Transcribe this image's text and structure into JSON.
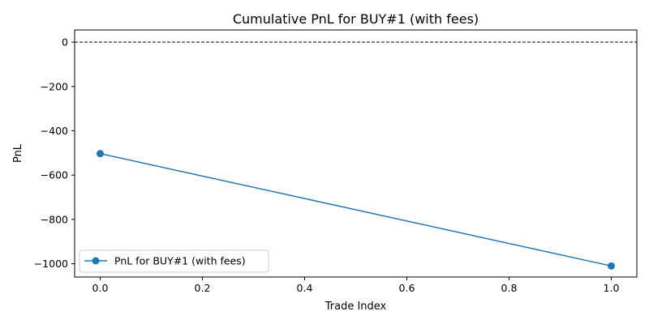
{
  "chart_data": {
    "type": "line",
    "title": "Cumulative PnL for BUY#1 (with fees)",
    "xlabel": "Trade Index",
    "ylabel": "PnL",
    "xlim": [
      -0.05,
      1.05
    ],
    "ylim": [
      -1060,
      55
    ],
    "x_ticks": [
      0.0,
      0.2,
      0.4,
      0.6,
      0.8,
      1.0
    ],
    "x_tick_labels": [
      "0.0",
      "0.2",
      "0.4",
      "0.6",
      "0.8",
      "1.0"
    ],
    "y_ticks": [
      0,
      -200,
      -400,
      -600,
      -800,
      -1000
    ],
    "y_tick_labels": [
      "0",
      "−200",
      "−400",
      "−600",
      "−800",
      "−1000"
    ],
    "grid": false,
    "legend_position": "lower-left",
    "reference_line": {
      "y": 0,
      "style": "dashed",
      "color": "#000000"
    },
    "series": [
      {
        "name": "PnL for BUY#1 (with fees)",
        "color": "#1f77b4",
        "marker": "circle",
        "x": [
          0,
          1
        ],
        "y": [
          -503,
          -1010
        ]
      }
    ]
  }
}
